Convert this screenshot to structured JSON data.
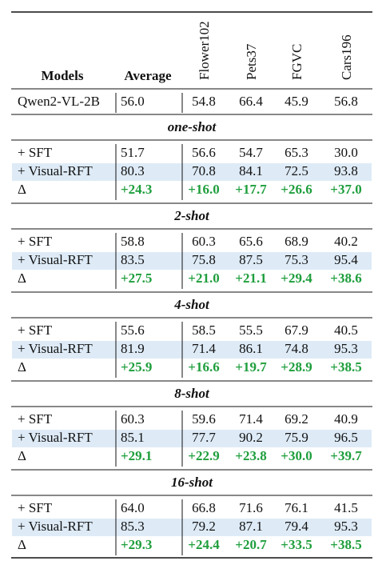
{
  "header": {
    "models": "Models",
    "average": "Average",
    "datasets": [
      "Flower102",
      "Pets37",
      "FGVC",
      "Cars196"
    ]
  },
  "baseline": {
    "name": "Qwen2-VL-2B",
    "values": [
      "56.0",
      "54.8",
      "66.4",
      "45.9",
      "56.8"
    ]
  },
  "sections": [
    {
      "title": "one-shot",
      "rows": [
        {
          "name": "+ SFT",
          "values": [
            "51.7",
            "56.6",
            "54.7",
            "65.3",
            "30.0"
          ]
        },
        {
          "name": "+ Visual-RFT",
          "values": [
            "80.3",
            "70.8",
            "84.1",
            "72.5",
            "93.8"
          ]
        },
        {
          "name": "Δ",
          "values": [
            "+24.3",
            "+16.0",
            "+17.7",
            "+26.6",
            "+37.0"
          ]
        }
      ]
    },
    {
      "title": "2-shot",
      "rows": [
        {
          "name": "+ SFT",
          "values": [
            "58.8",
            "60.3",
            "65.6",
            "68.9",
            "40.2"
          ]
        },
        {
          "name": "+ Visual-RFT",
          "values": [
            "83.5",
            "75.8",
            "87.5",
            "75.3",
            "95.4"
          ]
        },
        {
          "name": "Δ",
          "values": [
            "+27.5",
            "+21.0",
            "+21.1",
            "+29.4",
            "+38.6"
          ]
        }
      ]
    },
    {
      "title": "4-shot",
      "rows": [
        {
          "name": "+ SFT",
          "values": [
            "55.6",
            "58.5",
            "55.5",
            "67.9",
            "40.5"
          ]
        },
        {
          "name": "+ Visual-RFT",
          "values": [
            "81.9",
            "71.4",
            "86.1",
            "74.8",
            "95.3"
          ]
        },
        {
          "name": "Δ",
          "values": [
            "+25.9",
            "+16.6",
            "+19.7",
            "+28.9",
            "+38.5"
          ]
        }
      ]
    },
    {
      "title": "8-shot",
      "rows": [
        {
          "name": "+ SFT",
          "values": [
            "60.3",
            "59.6",
            "71.4",
            "69.2",
            "40.9"
          ]
        },
        {
          "name": "+ Visual-RFT",
          "values": [
            "85.1",
            "77.7",
            "90.2",
            "75.9",
            "96.5"
          ]
        },
        {
          "name": "Δ",
          "values": [
            "+29.1",
            "+22.9",
            "+23.8",
            "+30.0",
            "+39.7"
          ]
        }
      ]
    },
    {
      "title": "16-shot",
      "rows": [
        {
          "name": "+ SFT",
          "values": [
            "64.0",
            "66.8",
            "71.6",
            "76.1",
            "41.5"
          ]
        },
        {
          "name": "+ Visual-RFT",
          "values": [
            "85.3",
            "79.2",
            "87.1",
            "79.4",
            "95.3"
          ]
        },
        {
          "name": "Δ",
          "values": [
            "+29.3",
            "+24.4",
            "+20.7",
            "+33.5",
            "+38.5"
          ]
        }
      ]
    }
  ]
}
